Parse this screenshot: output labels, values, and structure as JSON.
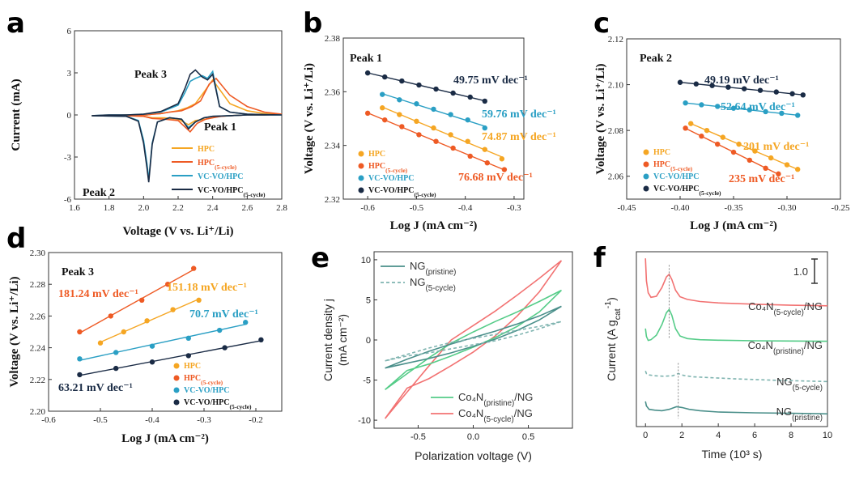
{
  "colors": {
    "hpc": "#f5a623",
    "hpc5": "#ee5a24",
    "vcvo": "#2a9fc4",
    "vcvo5": "#1a2b45",
    "ng": "#4a8f8a",
    "ng5": "#7fb4b0",
    "co4n": "#55cc88",
    "co4n5": "#f27272"
  },
  "panel_labels": [
    "a",
    "b",
    "c",
    "d",
    "e",
    "f"
  ],
  "legend_abcd": {
    "hpc": "HPC",
    "hpc5_main": "HPC",
    "hpc5_sub": "(5-cycle)",
    "vcvo": "VC-VO/HPC",
    "vcvo5_main": "VC-VO/HPC",
    "vcvo5_sub": "(5-cycle)"
  },
  "chart_data": [
    {
      "panel": "a",
      "type": "line",
      "xlabel": "Voltage (V vs. Li⁺/Li)",
      "ylabel": "Current (mA)",
      "xlim": [
        1.6,
        2.8
      ],
      "ylim": [
        -6,
        6
      ],
      "xticks": [
        "1.6",
        "1.8",
        "2.0",
        "2.2",
        "2.4",
        "2.6",
        "2.8"
      ],
      "yticks": [
        "-6",
        "-3",
        "0",
        "3",
        "6"
      ],
      "annotations": [
        "Peak 1",
        "Peak 2",
        "Peak 3"
      ],
      "series": [
        {
          "name": "HPC",
          "key": "hpc",
          "x": [
            1.7,
            1.9,
            2.0,
            2.05,
            2.12,
            2.2,
            2.26,
            2.3,
            2.36,
            2.4,
            2.44,
            2.5,
            2.6,
            2.7,
            2.8,
            2.7,
            2.6,
            2.5,
            2.4,
            2.36,
            2.3,
            2.25,
            2.2,
            2.15,
            2.1,
            2.05,
            2.02,
            2.0,
            1.95,
            1.9,
            1.8,
            1.7
          ],
          "y": [
            -0.05,
            -0.05,
            -0.1,
            -0.2,
            -0.2,
            -0.3,
            -0.7,
            -0.4,
            -0.3,
            -0.2,
            -0.1,
            -0.05,
            0.0,
            0.0,
            0.05,
            0.1,
            0.3,
            0.8,
            2.5,
            1.8,
            0.8,
            0.5,
            0.3,
            0.2,
            0.1,
            0.05,
            0.0,
            0.0,
            0.0,
            0.0,
            -0.05,
            -0.05
          ]
        },
        {
          "name": "HPC(5-cycle)",
          "key": "hpc5",
          "x": [
            1.7,
            1.9,
            2.0,
            2.05,
            2.12,
            2.2,
            2.27,
            2.31,
            2.36,
            2.4,
            2.45,
            2.5,
            2.6,
            2.7,
            2.8,
            2.7,
            2.6,
            2.5,
            2.42,
            2.38,
            2.33,
            2.28,
            2.22,
            2.15,
            2.1,
            2.05,
            2.02,
            2.0,
            1.9,
            1.8,
            1.7
          ],
          "y": [
            -0.05,
            -0.05,
            -0.1,
            -0.25,
            -0.3,
            -0.4,
            -1.2,
            -0.6,
            -0.3,
            -0.2,
            -0.1,
            -0.05,
            0.0,
            0.0,
            0.05,
            0.2,
            0.6,
            1.4,
            2.6,
            2.2,
            1.0,
            0.6,
            0.3,
            0.2,
            0.1,
            0.05,
            0.0,
            0.0,
            0.0,
            -0.05,
            -0.05
          ]
        },
        {
          "name": "VC-VO/HPC",
          "key": "vcvo",
          "x": [
            1.7,
            1.9,
            1.97,
            2.0,
            2.02,
            2.03,
            2.05,
            2.08,
            2.15,
            2.22,
            2.26,
            2.3,
            2.35,
            2.4,
            2.5,
            2.6,
            2.8,
            2.6,
            2.5,
            2.44,
            2.4,
            2.37,
            2.34,
            2.3,
            2.27,
            2.24,
            2.2,
            2.1,
            2.0,
            1.9,
            1.8,
            1.7
          ],
          "y": [
            -0.05,
            -0.1,
            -0.4,
            -1.8,
            -3.5,
            -4.6,
            -2.0,
            -0.5,
            -0.2,
            -0.3,
            -0.9,
            -0.5,
            -0.2,
            -0.1,
            -0.05,
            0.0,
            0.0,
            0.05,
            0.2,
            0.6,
            3.1,
            2.6,
            2.8,
            2.6,
            2.4,
            1.6,
            0.7,
            0.2,
            0.05,
            0.0,
            0.0,
            -0.05
          ]
        },
        {
          "name": "VC-VO/HPC(5-cycle)",
          "key": "vcvo5",
          "x": [
            1.7,
            1.9,
            1.97,
            2.0,
            2.02,
            2.03,
            2.05,
            2.08,
            2.15,
            2.22,
            2.26,
            2.3,
            2.35,
            2.4,
            2.5,
            2.6,
            2.8,
            2.6,
            2.5,
            2.44,
            2.4,
            2.37,
            2.34,
            2.3,
            2.27,
            2.24,
            2.2,
            2.1,
            2.0,
            1.9,
            1.8,
            1.7
          ],
          "y": [
            -0.05,
            -0.1,
            -0.45,
            -2.0,
            -3.8,
            -4.8,
            -2.1,
            -0.5,
            -0.2,
            -0.3,
            -1.0,
            -0.5,
            -0.2,
            -0.1,
            -0.05,
            0.0,
            0.0,
            0.05,
            0.2,
            0.6,
            2.9,
            2.5,
            2.7,
            3.2,
            2.9,
            1.9,
            0.8,
            0.25,
            0.05,
            0.0,
            0.0,
            -0.05
          ]
        }
      ]
    },
    {
      "panel": "b",
      "type": "scatter",
      "xlabel": "Log J (mA cm⁻²)",
      "ylabel": "Voltage (V vs. Li⁺/Li)",
      "xlim": [
        -0.65,
        -0.28
      ],
      "ylim": [
        2.32,
        2.38
      ],
      "xticks": [
        "-0.6",
        "-0.5",
        "-0.4",
        "-0.3"
      ],
      "yticks": [
        "2.32",
        "2.34",
        "2.36",
        "2.38"
      ],
      "annotations": [
        "Peak 1"
      ],
      "series": [
        {
          "key": "vcvo5",
          "slope_label": "49.75 mV dec⁻¹",
          "x": [
            -0.6,
            -0.565,
            -0.53,
            -0.495,
            -0.46,
            -0.425,
            -0.39,
            -0.36
          ],
          "y": [
            2.367,
            2.3655,
            2.364,
            2.3625,
            2.361,
            2.3595,
            2.358,
            2.3565
          ]
        },
        {
          "key": "vcvo",
          "slope_label": "59.76 mV dec⁻¹",
          "x": [
            -0.57,
            -0.535,
            -0.5,
            -0.465,
            -0.43,
            -0.395,
            -0.36
          ],
          "y": [
            2.359,
            2.357,
            2.3555,
            2.3535,
            2.3515,
            2.3495,
            2.3465
          ]
        },
        {
          "key": "hpc",
          "slope_label": "74.87 mV dec⁻¹",
          "x": [
            -0.57,
            -0.535,
            -0.5,
            -0.465,
            -0.43,
            -0.395,
            -0.36,
            -0.325
          ],
          "y": [
            2.354,
            2.3515,
            2.349,
            2.3465,
            2.344,
            2.3415,
            2.3385,
            2.335
          ]
        },
        {
          "key": "hpc5",
          "slope_label": "76.68 mV dec⁻¹",
          "x": [
            -0.6,
            -0.565,
            -0.53,
            -0.495,
            -0.46,
            -0.425,
            -0.39,
            -0.355,
            -0.32
          ],
          "y": [
            2.352,
            2.3495,
            2.347,
            2.344,
            2.3415,
            2.339,
            2.336,
            2.3335,
            2.331
          ]
        }
      ]
    },
    {
      "panel": "c",
      "type": "scatter",
      "xlabel": "Log J (mA cm⁻²)",
      "ylabel": "Voltage (V vs. Li⁺/Li)",
      "xlim": [
        -0.45,
        -0.25
      ],
      "ylim": [
        2.05,
        2.12
      ],
      "xticks": [
        "-0.45",
        "-0.40",
        "-0.35",
        "-0.30",
        "-0.25"
      ],
      "yticks": [
        "2.06",
        "2.08",
        "2.10",
        "2.12"
      ],
      "annotations": [
        "Peak 2"
      ],
      "series": [
        {
          "key": "vcvo5",
          "slope_label": "49.19 mV dec⁻¹",
          "x": [
            -0.4,
            -0.385,
            -0.37,
            -0.355,
            -0.34,
            -0.325,
            -0.31,
            -0.295,
            -0.285
          ],
          "y": [
            2.101,
            2.1003,
            2.0996,
            2.0989,
            2.0982,
            2.0975,
            2.0968,
            2.096,
            2.0955
          ]
        },
        {
          "key": "vcvo",
          "slope_label": "52.64 mV dec⁻¹",
          "x": [
            -0.395,
            -0.38,
            -0.365,
            -0.35,
            -0.335,
            -0.32,
            -0.305,
            -0.29
          ],
          "y": [
            2.092,
            2.0912,
            2.0905,
            2.0897,
            2.089,
            2.0882,
            2.0875,
            2.0866
          ]
        },
        {
          "key": "hpc",
          "slope_label": "201 mV dec⁻¹",
          "x": [
            -0.39,
            -0.375,
            -0.36,
            -0.345,
            -0.33,
            -0.315,
            -0.3,
            -0.29
          ],
          "y": [
            2.083,
            2.08,
            2.077,
            2.074,
            2.071,
            2.068,
            2.065,
            2.063
          ]
        },
        {
          "key": "hpc5",
          "slope_label": "235 mV dec⁻¹",
          "x": [
            -0.395,
            -0.38,
            -0.365,
            -0.35,
            -0.335,
            -0.32,
            -0.308
          ],
          "y": [
            2.081,
            2.0775,
            2.074,
            2.0705,
            2.067,
            2.0635,
            2.061
          ]
        }
      ]
    },
    {
      "panel": "d",
      "type": "scatter",
      "xlabel": "Log J (mA cm⁻²)",
      "ylabel": "Voltage (V vs. Li⁺/Li)",
      "xlim": [
        -0.6,
        -0.15
      ],
      "ylim": [
        2.2,
        2.3
      ],
      "xticks": [
        "-0.6",
        "-0.5",
        "-0.4",
        "-0.3",
        "-0.2"
      ],
      "yticks": [
        "2.20",
        "2.22",
        "2.24",
        "2.26",
        "2.28",
        "2.30"
      ],
      "annotations": [
        "Peak 3"
      ],
      "series": [
        {
          "key": "hpc5",
          "slope_label": "181.24 mV dec⁻¹",
          "x": [
            -0.54,
            -0.48,
            -0.42,
            -0.37,
            -0.32
          ],
          "y": [
            2.25,
            2.26,
            2.27,
            2.28,
            2.29
          ]
        },
        {
          "key": "hpc",
          "slope_label": "151.18 mV dec⁻¹",
          "x": [
            -0.5,
            -0.455,
            -0.41,
            -0.36,
            -0.31
          ],
          "y": [
            2.243,
            2.25,
            2.257,
            2.264,
            2.27
          ]
        },
        {
          "key": "vcvo",
          "slope_label": "70.7 mV dec⁻¹",
          "x": [
            -0.54,
            -0.47,
            -0.4,
            -0.33,
            -0.27,
            -0.22
          ],
          "y": [
            2.233,
            2.237,
            2.241,
            2.246,
            2.251,
            2.256
          ]
        },
        {
          "key": "vcvo5",
          "slope_label": "63.21 mV dec⁻¹",
          "x": [
            -0.54,
            -0.47,
            -0.4,
            -0.33,
            -0.26,
            -0.19
          ],
          "y": [
            2.223,
            2.227,
            2.231,
            2.235,
            2.24,
            2.245
          ]
        }
      ]
    },
    {
      "panel": "e",
      "type": "line",
      "xlabel": "Polarization voltage (V)",
      "ylabel_main": "Current density j",
      "ylabel_unit": "(mA cm⁻²)",
      "xlim": [
        -0.9,
        0.9
      ],
      "ylim": [
        -11,
        11
      ],
      "xticks": [
        "-0.5",
        "0.0",
        "0.5"
      ],
      "yticks": [
        "-10",
        "-5",
        "0",
        "5",
        "10"
      ],
      "legend_top": [
        {
          "main": "NG",
          "sub": "(pristine)",
          "key": "ng"
        },
        {
          "main": "NG",
          "sub": "(5-cycle)",
          "key": "ng5"
        }
      ],
      "legend_bottom": [
        {
          "main": "Co₄N",
          "sub": "(pristine)",
          "tail": "/NG",
          "key": "co4n"
        },
        {
          "main": "Co₄N",
          "sub": "(5-cycle)",
          "tail": "/NG",
          "key": "co4n5"
        }
      ],
      "series": [
        {
          "key": "co4n5",
          "x": [
            -0.8,
            -0.6,
            -0.4,
            -0.2,
            0.0,
            0.2,
            0.4,
            0.6,
            0.8,
            0.6,
            0.4,
            0.2,
            0.0,
            -0.2,
            -0.4,
            -0.6,
            -0.8
          ],
          "y": [
            -9.8,
            -6.5,
            -3.2,
            0.0,
            1.8,
            3.6,
            5.6,
            7.7,
            9.9,
            6.0,
            3.0,
            0.5,
            -1.5,
            -3.2,
            -4.8,
            -6.0,
            -9.8
          ]
        },
        {
          "key": "co4n",
          "x": [
            -0.8,
            -0.6,
            -0.4,
            -0.2,
            0.0,
            0.2,
            0.4,
            0.6,
            0.8,
            0.6,
            0.4,
            0.2,
            0.0,
            -0.2,
            -0.4,
            -0.6,
            -0.8
          ],
          "y": [
            -6.2,
            -4.2,
            -2.2,
            -0.4,
            1.0,
            2.3,
            3.5,
            4.8,
            6.2,
            3.5,
            1.7,
            0.3,
            -0.9,
            -2.0,
            -3.0,
            -3.8,
            -6.2
          ]
        },
        {
          "key": "ng",
          "x": [
            -0.8,
            -0.6,
            -0.4,
            -0.2,
            0.0,
            0.2,
            0.4,
            0.6,
            0.8,
            0.6,
            0.4,
            0.2,
            0.0,
            -0.2,
            -0.4,
            -0.6,
            -0.8
          ],
          "y": [
            -3.5,
            -2.4,
            -1.4,
            -0.5,
            0.3,
            1.1,
            2.0,
            3.0,
            4.2,
            2.5,
            1.2,
            0.1,
            -0.8,
            -1.6,
            -2.3,
            -2.9,
            -3.5
          ]
        },
        {
          "key": "ng5",
          "dashed": true,
          "x": [
            -0.8,
            -0.6,
            -0.4,
            -0.2,
            0.0,
            0.2,
            0.4,
            0.6,
            0.8,
            0.6,
            0.4,
            0.2,
            0.0,
            -0.2,
            -0.4,
            -0.6,
            -0.8
          ],
          "y": [
            -2.6,
            -1.8,
            -1.0,
            -0.3,
            0.2,
            0.7,
            1.2,
            1.7,
            2.3,
            1.4,
            0.6,
            -0.1,
            -0.6,
            -1.1,
            -1.6,
            -2.0,
            -2.6
          ]
        }
      ]
    },
    {
      "panel": "f",
      "type": "line",
      "xlabel": "Time (10³ s)",
      "ylabel": "Current (A g",
      "ylabel_sub": "cat",
      "ylabel_sup": "-1",
      "ylabel_close": ")",
      "xlim": [
        -0.5,
        10
      ],
      "xticks": [
        "0",
        "2",
        "4",
        "6",
        "8",
        "10"
      ],
      "scale_bar_label": "1.0",
      "series": [
        {
          "key": "co4n5",
          "label_main": "Co₄N",
          "label_sub": "(5-cycle)",
          "label_tail": "/NG",
          "offset": 3.9,
          "x": [
            0.0,
            0.05,
            0.15,
            0.3,
            0.6,
            0.9,
            1.15,
            1.3,
            1.45,
            1.65,
            1.9,
            2.3,
            3.0,
            4.0,
            6.0,
            8.0,
            10.0
          ],
          "y": [
            1.85,
            1.0,
            0.55,
            0.38,
            0.42,
            0.75,
            1.15,
            1.25,
            1.05,
            0.65,
            0.4,
            0.3,
            0.22,
            0.17,
            0.12,
            0.08,
            0.06
          ]
        },
        {
          "key": "co4n",
          "label_main": "Co₄N",
          "label_sub": "(pristine)",
          "label_tail": "/NG",
          "offset": 2.6,
          "x": [
            0.0,
            0.05,
            0.15,
            0.3,
            0.6,
            0.9,
            1.15,
            1.3,
            1.45,
            1.65,
            1.9,
            2.3,
            3.0,
            4.0,
            6.0,
            8.0,
            10.0
          ],
          "y": [
            0.5,
            0.2,
            0.05,
            0.08,
            0.25,
            0.65,
            1.1,
            1.22,
            1.0,
            0.5,
            0.22,
            0.12,
            0.08,
            0.06,
            0.04,
            0.03,
            0.02
          ]
        },
        {
          "key": "ng5",
          "dashed": true,
          "label_main": "NG",
          "label_sub": "(5-cycle)",
          "label_tail": "",
          "offset": 1.3,
          "x": [
            0.0,
            0.05,
            0.2,
            0.5,
            1.0,
            1.5,
            1.8,
            2.1,
            2.6,
            3.5,
            5.0,
            7.0,
            10.0
          ],
          "y": [
            0.2,
            0.1,
            0.05,
            0.02,
            0.0,
            0.02,
            0.1,
            0.03,
            -0.02,
            -0.05,
            -0.1,
            -0.15,
            -0.2
          ]
        },
        {
          "key": "ng",
          "label_main": "NG",
          "label_sub": "(pristine)",
          "label_tail": "",
          "offset": 0.0,
          "x": [
            0.0,
            0.05,
            0.2,
            0.5,
            0.9,
            1.3,
            1.7,
            2.0,
            2.4,
            3.0,
            4.0,
            6.0,
            8.0,
            10.0
          ],
          "y": [
            0.35,
            0.18,
            0.05,
            0.02,
            0.0,
            0.05,
            0.15,
            0.12,
            0.05,
            0.0,
            -0.05,
            -0.08,
            -0.1,
            -0.12
          ]
        }
      ]
    }
  ]
}
